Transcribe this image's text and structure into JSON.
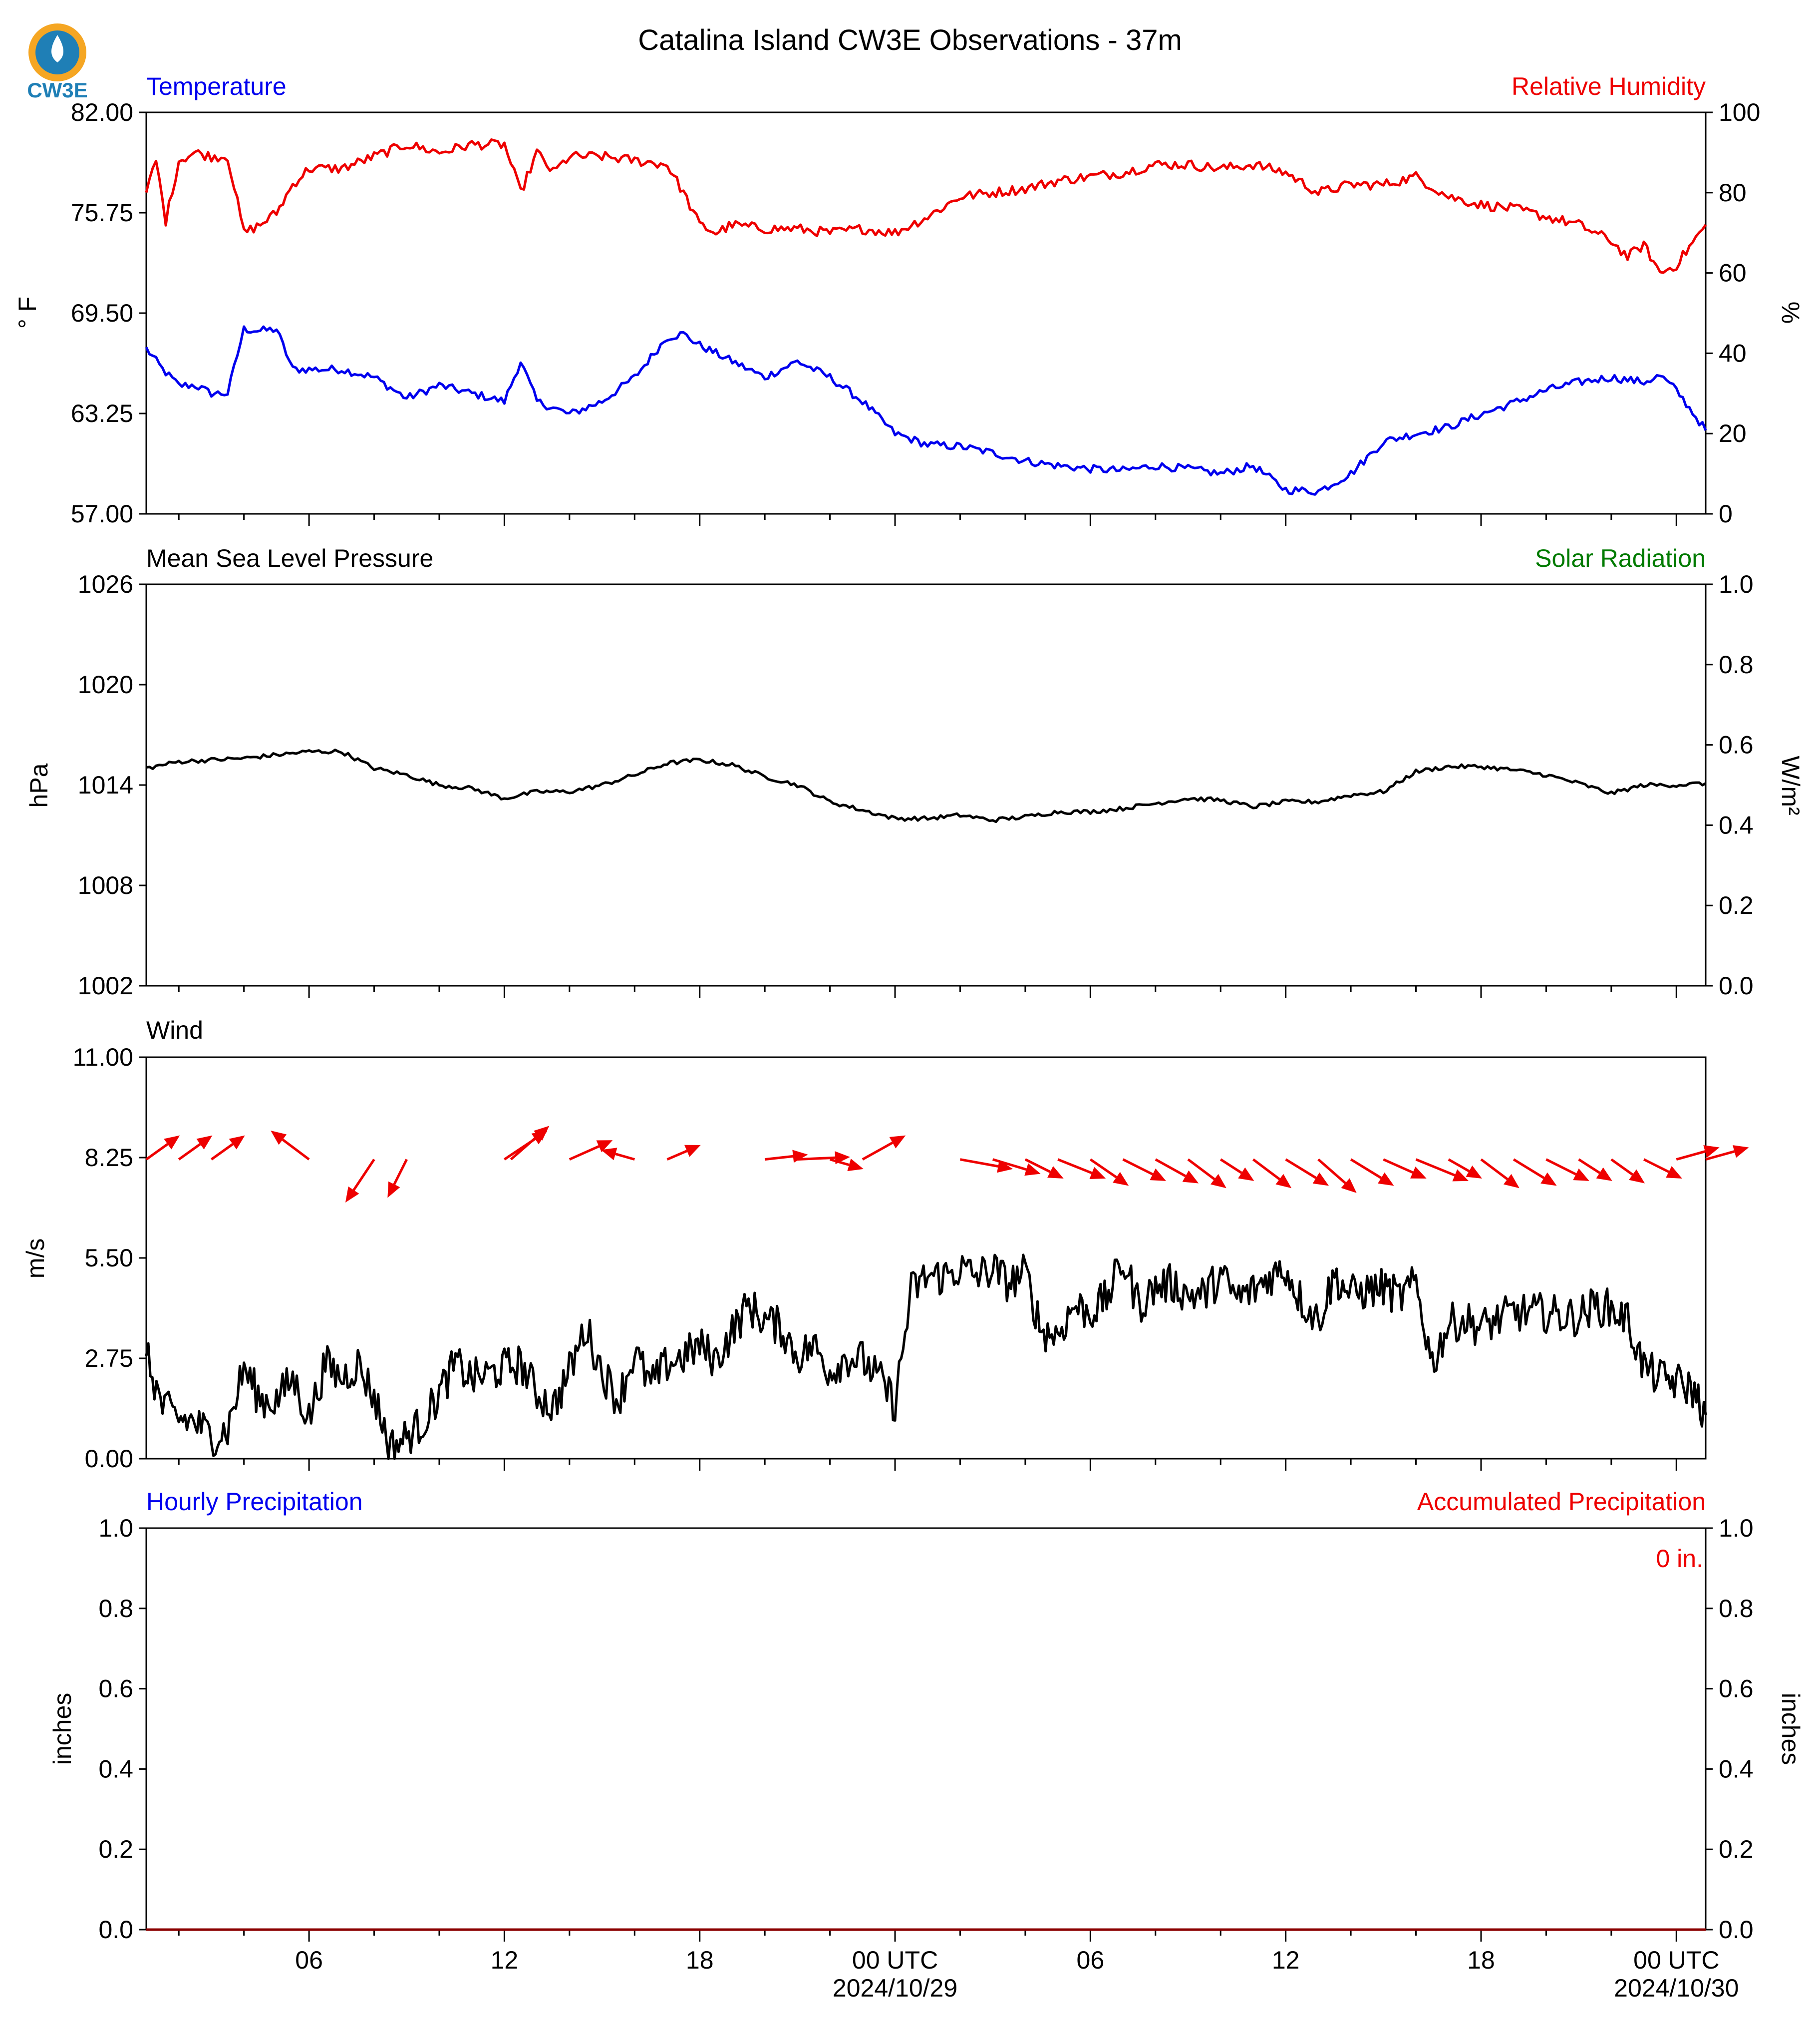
{
  "title": "Catalina Island CW3E Observations - 37m",
  "logo_text": "CW3E",
  "x_axis": {
    "range_hours": [
      -23,
      24.9
    ],
    "ticks": [
      {
        "h": -18,
        "label": "06",
        "sub": ""
      },
      {
        "h": -12,
        "label": "12",
        "sub": ""
      },
      {
        "h": -6,
        "label": "18",
        "sub": ""
      },
      {
        "h": 0,
        "label": "00 UTC",
        "sub": "2024/10/29"
      },
      {
        "h": 6,
        "label": "06",
        "sub": ""
      },
      {
        "h": 12,
        "label": "12",
        "sub": ""
      },
      {
        "h": 18,
        "label": "18",
        "sub": ""
      },
      {
        "h": 24,
        "label": "00 UTC",
        "sub": "2024/10/30"
      }
    ]
  },
  "colors": {
    "blue": "#0000ee",
    "red": "#ee0000",
    "green": "#007a00",
    "black": "#000000"
  },
  "chart_data": [
    {
      "type": "line",
      "left_title": "Temperature",
      "right_title": "Relative Humidity",
      "left_ylabel": "° F",
      "right_ylabel": "%",
      "left_ylim": [
        57,
        82
      ],
      "right_ylim": [
        0,
        100
      ],
      "left_ticks": [
        "57.00",
        "63.25",
        "69.50",
        "75.75",
        "82.00"
      ],
      "right_ticks": [
        "0",
        "20",
        "40",
        "60",
        "80",
        "100"
      ],
      "series": [
        {
          "axis": "left",
          "color": "#0000ee",
          "x": [
            -23,
            -22.5,
            -22,
            -21.5,
            -21,
            -20.5,
            -20,
            -19.5,
            -19,
            -18.5,
            -18,
            -17,
            -16,
            -15,
            -14,
            -13,
            -12,
            -11.5,
            -11,
            -10,
            -9,
            -8,
            -7,
            -6.5,
            -6,
            -5,
            -4,
            -3,
            -2,
            -1,
            0,
            1,
            2,
            3,
            4,
            5,
            6,
            7,
            8,
            9,
            10,
            11,
            12,
            13,
            14,
            15,
            16,
            17,
            18,
            19,
            20,
            21,
            22,
            23,
            23.5,
            24,
            24.9
          ],
          "y": [
            67.3,
            66,
            65,
            65,
            64.5,
            64.5,
            68.5,
            68.4,
            68.5,
            66,
            66,
            66,
            65.5,
            64.2,
            65,
            64.5,
            64,
            66.5,
            64,
            63.2,
            64,
            65.5,
            68,
            68.2,
            67.5,
            66.5,
            65.5,
            66.5,
            65.5,
            64,
            62,
            61.3,
            61.2,
            60.8,
            60.3,
            60,
            59.8,
            59.7,
            60,
            59.8,
            59.5,
            60,
            58.5,
            58.4,
            59.5,
            61.5,
            62,
            62.4,
            63.2,
            63.9,
            64.7,
            65.2,
            65.5,
            65.2,
            65.6,
            64.7,
            62.2
          ]
        },
        {
          "axis": "right",
          "color": "#ee0000",
          "x": [
            -23,
            -22.7,
            -22.4,
            -22,
            -21.5,
            -21,
            -20.5,
            -20,
            -19.5,
            -19,
            -18.5,
            -18,
            -17,
            -16,
            -15,
            -14,
            -13,
            -12,
            -11.5,
            -11,
            -10.5,
            -10,
            -9,
            -8,
            -7,
            -6.5,
            -6,
            -5.5,
            -5,
            -4,
            -3,
            -2,
            -1,
            0,
            1,
            2,
            3,
            4,
            5,
            6,
            7,
            8,
            9,
            10,
            11,
            12,
            13,
            14,
            15,
            16,
            17,
            18,
            19,
            20,
            21,
            22,
            22.5,
            23,
            23.5,
            24,
            24.9
          ],
          "y": [
            80,
            88,
            73,
            88,
            90,
            89,
            89,
            70,
            72,
            75,
            82,
            86,
            86,
            89,
            92,
            90,
            92,
            92,
            80,
            90,
            85,
            89,
            89,
            88,
            87,
            80,
            72,
            70,
            72,
            71,
            71,
            70,
            71,
            70,
            74,
            79,
            80,
            81,
            83,
            84,
            85,
            87,
            87,
            86,
            87,
            85,
            80,
            82,
            82,
            84,
            79,
            77,
            76,
            74,
            72,
            68,
            64,
            67,
            60,
            62,
            72
          ]
        }
      ]
    },
    {
      "type": "line",
      "left_title": "Mean Sea Level Pressure",
      "right_title": "Solar Radiation",
      "left_ylabel": "hPa",
      "right_ylabel": "W/m²",
      "left_ylim": [
        1002,
        1026
      ],
      "right_ylim": [
        0,
        1
      ],
      "left_ticks": [
        "1002",
        "1008",
        "1014",
        "1020",
        "1026"
      ],
      "right_ticks": [
        "0.0",
        "0.2",
        "0.4",
        "0.6",
        "0.8",
        "1.0"
      ],
      "series": [
        {
          "axis": "left",
          "color": "#000000",
          "x": [
            -23,
            -22,
            -20,
            -18,
            -17,
            -16,
            -15,
            -14,
            -13,
            -12,
            -11,
            -10,
            -9,
            -8,
            -7,
            -6,
            -5,
            -4,
            -3,
            -2,
            -1,
            0,
            1,
            2,
            3,
            4,
            5,
            6,
            7,
            8,
            9,
            10,
            11,
            12,
            13,
            14,
            15,
            16,
            17,
            18,
            19,
            20,
            21,
            22,
            23,
            24,
            24.9
          ],
          "y": [
            1015,
            1015.4,
            1015.6,
            1016,
            1016,
            1015,
            1014.6,
            1014,
            1013.8,
            1013.2,
            1013.6,
            1013.6,
            1014,
            1014.6,
            1015.3,
            1015.5,
            1015.2,
            1014.5,
            1014,
            1013,
            1012.5,
            1012,
            1012,
            1012.2,
            1011.9,
            1012.1,
            1012.4,
            1012.4,
            1012.6,
            1012.9,
            1013.2,
            1013.1,
            1012.7,
            1013,
            1013,
            1013.4,
            1013.6,
            1014.8,
            1015.1,
            1015.1,
            1014.9,
            1014.6,
            1014.1,
            1013.5,
            1014,
            1014,
            1014.1
          ]
        }
      ]
    },
    {
      "type": "line",
      "left_title": "Wind",
      "left_ylabel": "m/s",
      "left_ylim": [
        0,
        11
      ],
      "left_ticks": [
        "0.00",
        "2.75",
        "5.50",
        "8.25",
        "11.00"
      ],
      "series": [
        {
          "axis": "left",
          "color": "#000000",
          "x": [
            -23,
            -22.5,
            -22,
            -21.5,
            -21,
            -20.5,
            -20,
            -19.5,
            -19,
            -18.5,
            -18,
            -17.5,
            -17,
            -16.5,
            -16,
            -15.5,
            -15,
            -14.5,
            -14,
            -13.5,
            -13,
            -12.5,
            -12,
            -11.5,
            -11,
            -10.5,
            -10,
            -9.5,
            -9,
            -8.5,
            -8,
            -7.5,
            -7,
            -6.5,
            -6,
            -5.5,
            -5,
            -4.5,
            -4,
            -3.5,
            -3,
            -2.5,
            -2,
            -1.5,
            -1,
            -0.5,
            0,
            0.5,
            1,
            1.5,
            2,
            2.5,
            3,
            3.5,
            4,
            4.5,
            5,
            5.5,
            6,
            6.5,
            7,
            7.5,
            8,
            8.5,
            9,
            9.5,
            10,
            10.5,
            11,
            11.5,
            12,
            12.5,
            13,
            13.5,
            14,
            14.5,
            15,
            15.5,
            16,
            16.5,
            17,
            17.5,
            18,
            18.5,
            19,
            19.5,
            20,
            20.5,
            21,
            21.5,
            22,
            22.5,
            23,
            23.5,
            24,
            24.5,
            24.9
          ],
          "y": [
            2.8,
            1.4,
            1.1,
            1,
            0.6,
            0.8,
            2.5,
            1.6,
            1.6,
            2.2,
            1.1,
            2.6,
            2.2,
            2.6,
            1.7,
            0.3,
            0.6,
            1,
            1.8,
            2.6,
            2.2,
            2.3,
            2.5,
            2.6,
            1.8,
            1.4,
            2.4,
            3.6,
            2.4,
            1.6,
            2.9,
            2,
            2.6,
            2.8,
            3.1,
            2.7,
            3.5,
            4.2,
            3.8,
            3.6,
            2.8,
            3.1,
            2.4,
            2.8,
            2.7,
            2.2,
            1.5,
            4.6,
            5,
            5,
            5.2,
            5,
            5.2,
            4.8,
            5.1,
            3.5,
            3.4,
            4.2,
            4,
            4.4,
            5.4,
            4.2,
            4.7,
            4.8,
            4.5,
            4.5,
            5,
            4.4,
            4.6,
            5,
            5.2,
            4.3,
            3.8,
            5,
            4.5,
            4.6,
            4.7,
            4.4,
            4.8,
            2.6,
            3.7,
            3.8,
            3.6,
            3.8,
            4,
            4,
            4,
            3.9,
            3.9,
            4.2,
            4.1,
            3.8,
            2.5,
            2.2,
            2.1,
            1.9,
            1.2
          ]
        },
        {
          "axis": "left",
          "color": "#ee0000",
          "kind": "arrows",
          "x": [
            -23,
            -22,
            -21,
            -20,
            -19,
            -18,
            -17,
            -16,
            -15,
            -14,
            -13,
            -12,
            -11.8,
            -11,
            -10,
            -9,
            -8,
            -7,
            -6,
            -5,
            -4,
            -3,
            -2,
            -1,
            0,
            1,
            2,
            3,
            4,
            5,
            6,
            7,
            8,
            9,
            10,
            11,
            12,
            13,
            14,
            15,
            16,
            17,
            18,
            19,
            20,
            21,
            22,
            23,
            24,
            24.9
          ],
          "y": [
            8.2,
            8.2,
            8.2,
            8.2,
            8.2,
            8.2,
            8.2,
            8.2,
            8.2,
            8.2,
            8.2,
            8.2,
            8.2,
            8.2,
            8.2,
            8.2,
            8.2,
            8.2,
            8.2,
            8.2,
            8.2,
            8.2,
            8.2,
            8.2,
            8.2,
            8.2,
            8.2,
            8.2,
            8.2,
            8.2,
            8.2,
            8.2,
            8.2,
            8.2,
            8.2,
            8.2,
            8.2,
            8.2,
            8.2,
            8.2,
            8.2,
            8.2,
            8.2,
            8.2,
            8.2,
            8.2,
            8.2,
            8.2,
            8.2,
            8.2
          ],
          "u": [
            1.4,
            1.4,
            1.4,
            0,
            0,
            -1.6,
            0,
            -1.2,
            -0.8,
            0,
            0,
            1.8,
            1.6,
            0,
            1.8,
            0,
            -1.4,
            1.4,
            0,
            0,
            1.8,
            2.2,
            1.4,
            1.8,
            0,
            0,
            2.2,
            2,
            1.6,
            2,
            1.6,
            1.8,
            1.8,
            1.6,
            1.4,
            1.6,
            1.8,
            1.6,
            1.8,
            1.8,
            2.2,
            1.4,
            1.6,
            1.8,
            1.8,
            1.4,
            1.4,
            1.6,
            1.8,
            1.8
          ],
          "v": [
            1,
            1,
            1,
            0,
            0,
            1.2,
            0,
            -1.8,
            -1.6,
            0,
            0,
            1.2,
            1.4,
            0,
            0.8,
            0,
            0.4,
            0.6,
            0,
            0,
            0.2,
            0.1,
            -0.4,
            1,
            0,
            0,
            -0.4,
            -0.6,
            -0.8,
            -0.8,
            -1.1,
            -0.9,
            -1,
            -1.2,
            -0.9,
            -1.2,
            -1.1,
            -1.4,
            -1.1,
            -0.8,
            -0.9,
            -0.8,
            -1.2,
            -1.1,
            -0.9,
            -0.9,
            -1,
            -0.8,
            0.5,
            0.5
          ]
        }
      ]
    },
    {
      "type": "line",
      "left_title": "Hourly Precipitation",
      "right_title": "Accumulated Precipitation",
      "left_ylabel": "inches",
      "right_ylabel": "inches",
      "left_ylim": [
        0,
        1
      ],
      "right_ylim": [
        0,
        1
      ],
      "left_ticks": [
        "0.0",
        "0.2",
        "0.4",
        "0.6",
        "0.8",
        "1.0"
      ],
      "right_ticks": [
        "0.0",
        "0.2",
        "0.4",
        "0.6",
        "0.8",
        "1.0"
      ],
      "annotation": "0 in.",
      "series": [
        {
          "axis": "right",
          "color": "#8b0000",
          "x": [
            -23,
            24.9
          ],
          "y": [
            0,
            0
          ]
        }
      ]
    }
  ]
}
